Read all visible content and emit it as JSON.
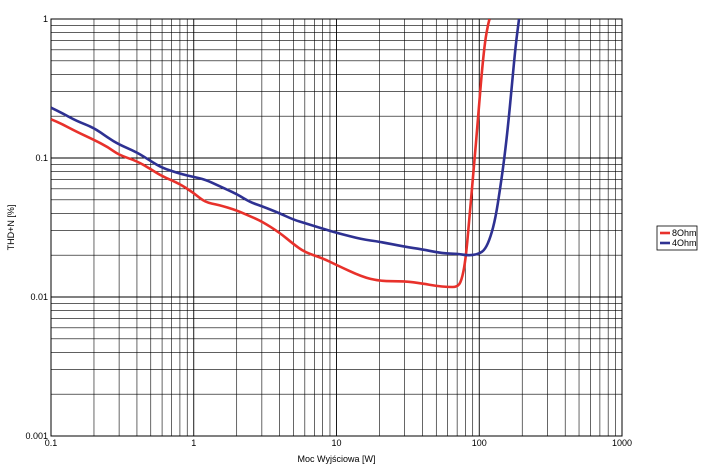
{
  "chart_data": {
    "type": "line",
    "title": "",
    "xlabel": "Moc Wyjściowa [W]",
    "ylabel": "THD+N [%]",
    "xscale": "log",
    "yscale": "log",
    "xlim": [
      0.1,
      1000
    ],
    "ylim": [
      0.001,
      1
    ],
    "grid": true,
    "legend_position": "right",
    "x_ticks": [
      "0.1",
      "1",
      "10",
      "100",
      "1000"
    ],
    "y_ticks": [
      "0.001",
      "0.01",
      "0.1",
      "1"
    ],
    "series": [
      {
        "name": "8Ohm",
        "color": "#e8312b",
        "x": [
          0.1,
          0.12,
          0.15,
          0.2,
          0.25,
          0.3,
          0.4,
          0.5,
          0.6,
          0.8,
          1,
          1.2,
          1.5,
          2,
          2.5,
          3,
          4,
          5,
          6,
          8,
          10,
          15,
          20,
          30,
          40,
          50,
          60,
          70,
          75,
          80,
          85,
          90,
          95,
          100,
          105,
          110,
          115,
          118
        ],
        "y": [
          0.19,
          0.175,
          0.155,
          0.135,
          0.12,
          0.105,
          0.095,
          0.083,
          0.074,
          0.065,
          0.056,
          0.048,
          0.046,
          0.042,
          0.038,
          0.035,
          0.029,
          0.024,
          0.021,
          0.019,
          0.017,
          0.014,
          0.013,
          0.013,
          0.0125,
          0.012,
          0.0118,
          0.0118,
          0.013,
          0.018,
          0.035,
          0.07,
          0.13,
          0.25,
          0.45,
          0.7,
          0.9,
          1.0
        ]
      },
      {
        "name": "4Ohm",
        "color": "#2e3192",
        "x": [
          0.1,
          0.12,
          0.15,
          0.2,
          0.25,
          0.3,
          0.4,
          0.5,
          0.6,
          0.8,
          1,
          1.2,
          1.5,
          2,
          2.5,
          3,
          4,
          5,
          6,
          8,
          10,
          15,
          20,
          30,
          40,
          50,
          60,
          70,
          80,
          90,
          100,
          110,
          120,
          130,
          140,
          150,
          160,
          170,
          180,
          190
        ],
        "y": [
          0.23,
          0.21,
          0.185,
          0.165,
          0.14,
          0.125,
          0.11,
          0.095,
          0.085,
          0.077,
          0.073,
          0.07,
          0.063,
          0.055,
          0.048,
          0.045,
          0.04,
          0.036,
          0.034,
          0.031,
          0.029,
          0.026,
          0.025,
          0.023,
          0.022,
          0.021,
          0.0205,
          0.0205,
          0.02,
          0.02,
          0.0205,
          0.022,
          0.027,
          0.037,
          0.06,
          0.1,
          0.18,
          0.35,
          0.65,
          1.0
        ]
      }
    ]
  }
}
